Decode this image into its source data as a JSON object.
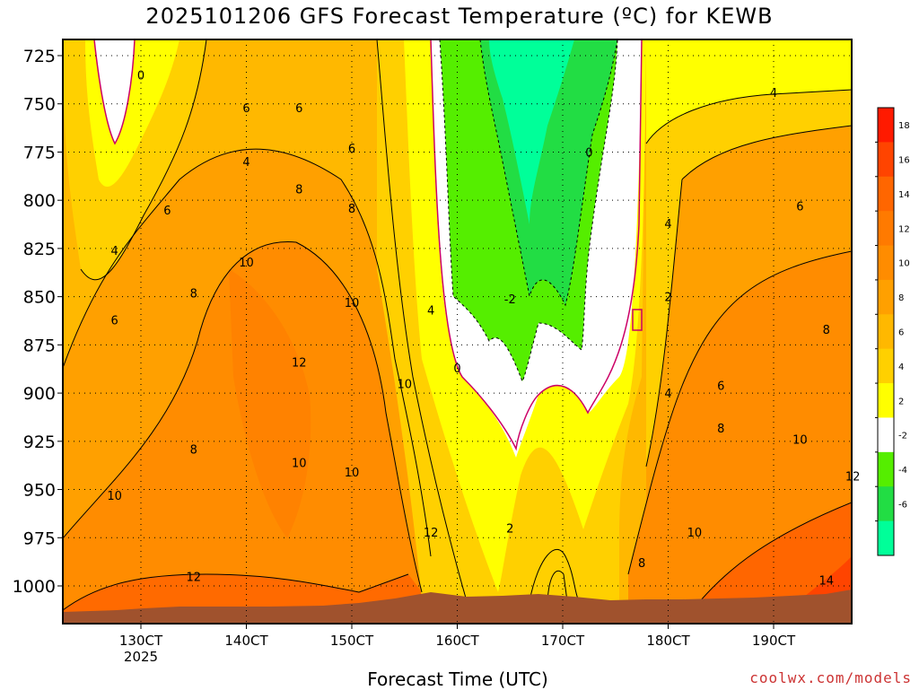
{
  "chart_data": {
    "type": "heatmap",
    "title": "2025101206 GFS Forecast Temperature (ºC) for KEWB",
    "xlabel": "Forecast Time (UTC)",
    "credit": "coolwx.com/models",
    "x_ticks": [
      "130CT",
      "140CT",
      "150CT",
      "160CT",
      "170CT",
      "180CT",
      "190CT"
    ],
    "x_tick_sublabel": "2025",
    "y_ticks": [
      725,
      750,
      775,
      800,
      825,
      850,
      875,
      900,
      925,
      950,
      975,
      1000
    ],
    "y_axis": "pressure (hPa), inverted",
    "colorbar": {
      "labels": [
        18,
        16,
        14,
        12,
        10,
        8,
        6,
        4,
        2,
        -2,
        -4,
        -6
      ],
      "colors": [
        "#ff1a00",
        "#ff4400",
        "#ff6600",
        "#ff7a00",
        "#ff8c00",
        "#ffa000",
        "#ffb800",
        "#ffd000",
        "#ffff00",
        "#ffffff",
        "#55ee00",
        "#22dd44",
        "#00ff99"
      ]
    },
    "contour_labels": [
      {
        "value": "0",
        "x": "13OCT 00Z",
        "p": 735
      },
      {
        "value": "4",
        "x": "14OCT 00Z",
        "p": 780
      },
      {
        "value": "6",
        "x": "14OCT 00Z",
        "p": 752
      },
      {
        "value": "6",
        "x": "14OCT 12Z",
        "p": 752
      },
      {
        "value": "6",
        "x": "15OCT 00Z",
        "p": 773
      },
      {
        "value": "8",
        "x": "14OCT 12Z",
        "p": 794
      },
      {
        "value": "8",
        "x": "15OCT 00Z",
        "p": 804
      },
      {
        "value": "6",
        "x": "13OCT 06Z",
        "p": 805
      },
      {
        "value": "4",
        "x": "12OCT 18Z",
        "p": 826
      },
      {
        "value": "10",
        "x": "14OCT 00Z",
        "p": 832
      },
      {
        "value": "10",
        "x": "15OCT 00Z",
        "p": 853
      },
      {
        "value": "8",
        "x": "13OCT 12Z",
        "p": 848
      },
      {
        "value": "6",
        "x": "12OCT 18Z",
        "p": 862
      },
      {
        "value": "4",
        "x": "15OCT 18Z",
        "p": 857
      },
      {
        "value": "12",
        "x": "14OCT 12Z",
        "p": 884
      },
      {
        "value": "10",
        "x": "15OCT 12Z",
        "p": 895
      },
      {
        "value": "8",
        "x": "13OCT 12Z",
        "p": 929
      },
      {
        "value": "10",
        "x": "14OCT 12Z",
        "p": 936
      },
      {
        "value": "10",
        "x": "15OCT 00Z",
        "p": 941
      },
      {
        "value": "10",
        "x": "12OCT 18Z",
        "p": 953
      },
      {
        "value": "12",
        "x": "15OCT 18Z",
        "p": 972
      },
      {
        "value": "12",
        "x": "13OCT 12Z",
        "p": 995
      },
      {
        "value": "0",
        "x": "16OCT 00Z",
        "p": 887
      },
      {
        "value": "-2",
        "x": "16OCT 12Z",
        "p": 851
      },
      {
        "value": "2",
        "x": "16OCT 12Z",
        "p": 970
      },
      {
        "value": "0",
        "x": "17OCT 06Z",
        "p": 775
      },
      {
        "value": "2",
        "x": "18OCT 00Z",
        "p": 850
      },
      {
        "value": "4",
        "x": "18OCT 00Z",
        "p": 812
      },
      {
        "value": "4",
        "x": "19OCT 00Z",
        "p": 744
      },
      {
        "value": "6",
        "x": "19OCT 06Z",
        "p": 803
      },
      {
        "value": "4",
        "x": "18OCT 00Z",
        "p": 900
      },
      {
        "value": "6",
        "x": "18OCT 12Z",
        "p": 896
      },
      {
        "value": "8",
        "x": "18OCT 12Z",
        "p": 918
      },
      {
        "value": "8",
        "x": "19OCT 12Z",
        "p": 867
      },
      {
        "value": "10",
        "x": "19OCT 06Z",
        "p": 924
      },
      {
        "value": "12",
        "x": "19OCT 18Z",
        "p": 943
      },
      {
        "value": "10",
        "x": "18OCT 06Z",
        "p": 972
      },
      {
        "value": "8",
        "x": "17OCT 18Z",
        "p": 988
      },
      {
        "value": "14",
        "x": "19OCT 12Z",
        "p": 997
      }
    ],
    "grid": true
  }
}
